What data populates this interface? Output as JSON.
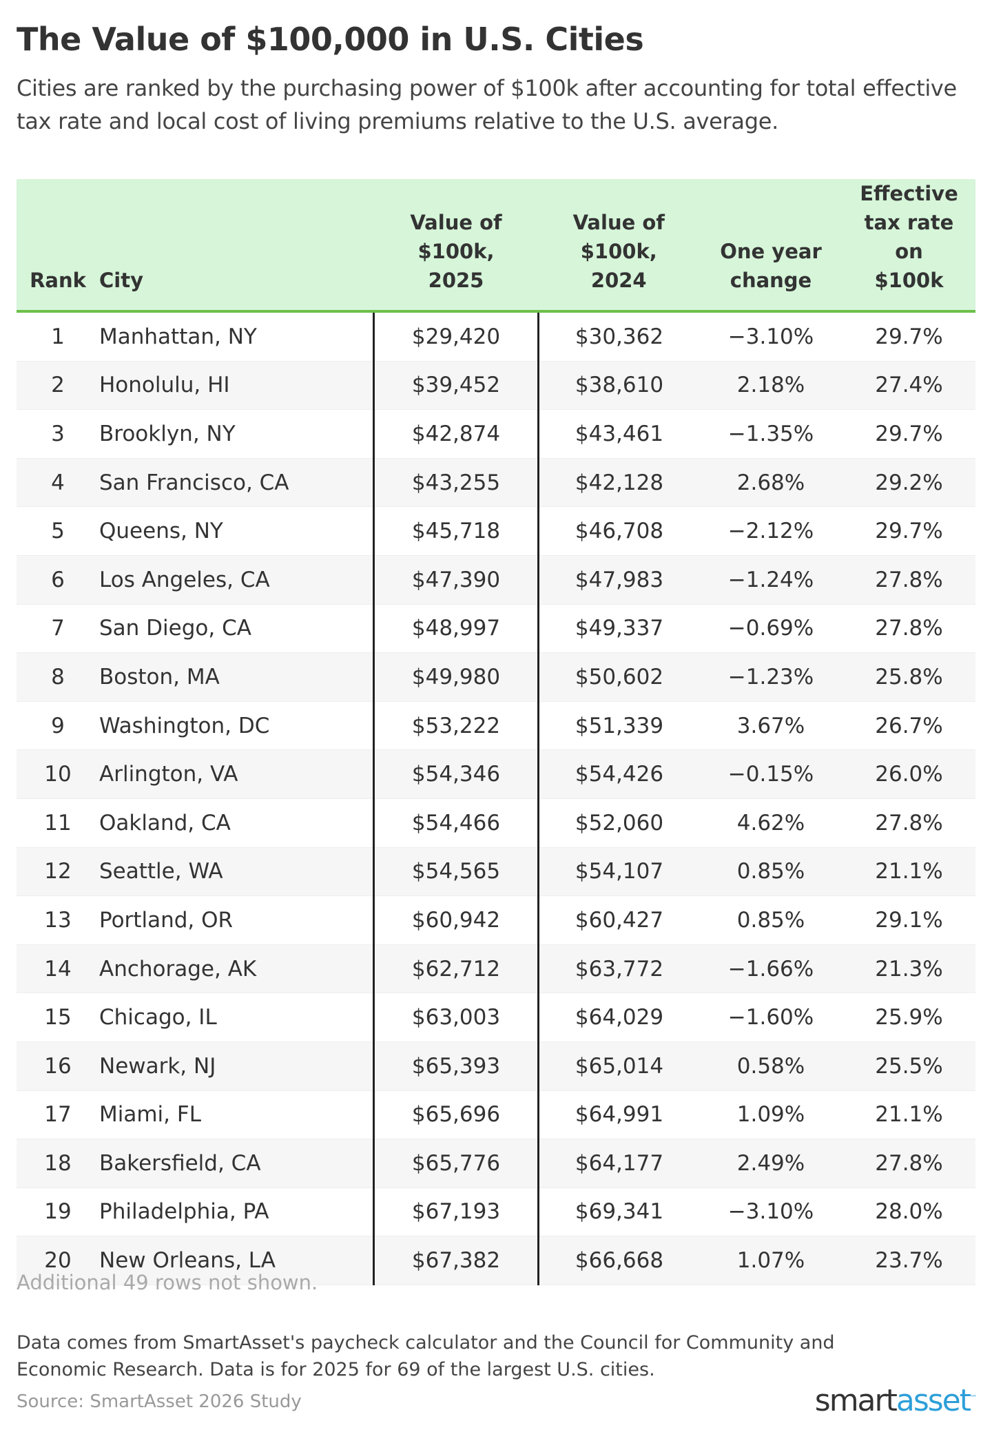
{
  "title": "The Value of $100,000 in U.S. Cities",
  "subtitle": "Cities are ranked by the purchasing power of $100k after accounting for total effective tax rate and local cost of living premiums relative to the U.S. average.",
  "table": {
    "headers": [
      "Rank",
      "City",
      "Value of $100k, 2025",
      "Value of $100k, 2024",
      "One year change",
      "Effective tax rate on $100k"
    ],
    "rows": [
      [
        "1",
        "Manhattan, NY",
        "$29,420",
        "$30,362",
        "−3.10%",
        "29.7%"
      ],
      [
        "2",
        "Honolulu, HI",
        "$39,452",
        "$38,610",
        "2.18%",
        "27.4%"
      ],
      [
        "3",
        "Brooklyn, NY",
        "$42,874",
        "$43,461",
        "−1.35%",
        "29.7%"
      ],
      [
        "4",
        "San Francisco, CA",
        "$43,255",
        "$42,128",
        "2.68%",
        "29.2%"
      ],
      [
        "5",
        "Queens, NY",
        "$45,718",
        "$46,708",
        "−2.12%",
        "29.7%"
      ],
      [
        "6",
        "Los Angeles, CA",
        "$47,390",
        "$47,983",
        "−1.24%",
        "27.8%"
      ],
      [
        "7",
        "San Diego, CA",
        "$48,997",
        "$49,337",
        "−0.69%",
        "27.8%"
      ],
      [
        "8",
        "Boston, MA",
        "$49,980",
        "$50,602",
        "−1.23%",
        "25.8%"
      ],
      [
        "9",
        "Washington, DC",
        "$53,222",
        "$51,339",
        "3.67%",
        "26.7%"
      ],
      [
        "10",
        "Arlington, VA",
        "$54,346",
        "$54,426",
        "−0.15%",
        "26.0%"
      ],
      [
        "11",
        "Oakland, CA",
        "$54,466",
        "$52,060",
        "4.62%",
        "27.8%"
      ],
      [
        "12",
        "Seattle, WA",
        "$54,565",
        "$54,107",
        "0.85%",
        "21.1%"
      ],
      [
        "13",
        "Portland, OR",
        "$60,942",
        "$60,427",
        "0.85%",
        "29.1%"
      ],
      [
        "14",
        "Anchorage, AK",
        "$62,712",
        "$63,772",
        "−1.66%",
        "21.3%"
      ],
      [
        "15",
        "Chicago, IL",
        "$63,003",
        "$64,029",
        "−1.60%",
        "25.9%"
      ],
      [
        "16",
        "Newark, NJ",
        "$65,393",
        "$65,014",
        "0.58%",
        "25.5%"
      ],
      [
        "17",
        "Miami, FL",
        "$65,696",
        "$64,991",
        "1.09%",
        "21.1%"
      ],
      [
        "18",
        "Bakersfield, CA",
        "$65,776",
        "$64,177",
        "2.49%",
        "27.8%"
      ],
      [
        "19",
        "Philadelphia, PA",
        "$67,193",
        "$69,341",
        "−3.10%",
        "28.0%"
      ],
      [
        "20",
        "New Orleans, LA",
        "$67,382",
        "$66,668",
        "1.07%",
        "23.7%"
      ]
    ]
  },
  "note": "Additional 49 rows not shown.",
  "footnote": "Data comes from SmartAsset's paycheck calculator and the Council for Community and Economic Research. Data is for 2025 for 69 of the largest U.S. cities.",
  "source": "Source: SmartAsset 2026 Study",
  "logo": {
    "part1": "smart",
    "part2": "asset",
    "tm": "™"
  },
  "colors": {
    "header_bg": "#d6f5d9",
    "header_rule": "#6cc04a",
    "logo_accent": "#2d9fd8"
  }
}
